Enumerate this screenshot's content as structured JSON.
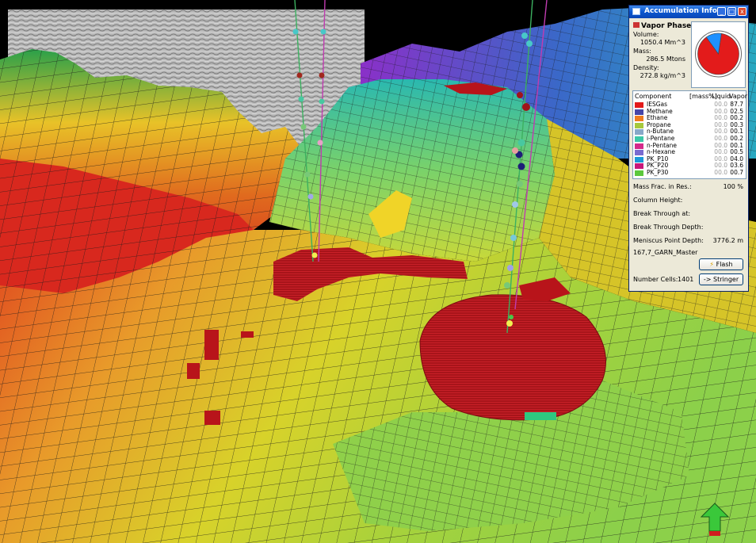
{
  "panel": {
    "title": "Accumulation Info",
    "window_buttons": {
      "minimize": "_",
      "restore": "□",
      "close": "x"
    },
    "phase_title": "Vapor Phase",
    "volume_label": "Volume:",
    "volume_value": "1050.4 Mm^3",
    "mass_label": "Mass:",
    "mass_value": "286.5 Mtons",
    "density_label": "Density:",
    "density_value": "272.8 kg/m^3",
    "pie": {
      "vapor_fraction": 0.877,
      "colors": [
        "#e31b1b",
        "#1e90ff",
        "#3fa9f5"
      ]
    },
    "components_header": {
      "component": "Component",
      "unit": "[mass%]",
      "liquid": "Liquid",
      "vapor": "Vapor"
    },
    "components": [
      {
        "name": "IESGas",
        "liquid": "00.0",
        "vapor": "87.7",
        "color": "#e31b1b"
      },
      {
        "name": "Methane",
        "liquid": "00.0",
        "vapor": "02.5",
        "color": "#4646a8"
      },
      {
        "name": "Ethane",
        "liquid": "00.0",
        "vapor": "00.2",
        "color": "#f07c1e"
      },
      {
        "name": "Propane",
        "liquid": "00.0",
        "vapor": "00.3",
        "color": "#a6c83c"
      },
      {
        "name": "n-Butane",
        "liquid": "00.0",
        "vapor": "00.1",
        "color": "#88a8c8"
      },
      {
        "name": "i-Pentane",
        "liquid": "00.0",
        "vapor": "00.2",
        "color": "#3cc8a8"
      },
      {
        "name": "n-Pentane",
        "liquid": "00.0",
        "vapor": "00.1",
        "color": "#d42a8a"
      },
      {
        "name": "n-Hexane",
        "liquid": "00.0",
        "vapor": "00.5",
        "color": "#7a6bd0"
      },
      {
        "name": "PK_P10",
        "liquid": "00.0",
        "vapor": "04.0",
        "color": "#1c9ad8"
      },
      {
        "name": "PK_P20",
        "liquid": "00.0",
        "vapor": "03.6",
        "color": "#c8187a"
      },
      {
        "name": "PK_P30",
        "liquid": "00.0",
        "vapor": "00.7",
        "color": "#5cc83c"
      }
    ],
    "mass_frac_label": "Mass Frac. in Res.:",
    "mass_frac_value": "100 %",
    "column_height_label": "Column Height:",
    "break_through_at_label": "Break Through at:",
    "break_through_depth_label": "Break Through Depth:",
    "meniscus_label": "Meniscus Point Depth:",
    "meniscus_value": "3776.2 m",
    "horizon_name": "167,7_GARN_Master",
    "flash_button": "Flash",
    "number_cells_label": "Number Cells:",
    "number_cells_value": "1401",
    "stringer_button": "-> Stringer"
  }
}
